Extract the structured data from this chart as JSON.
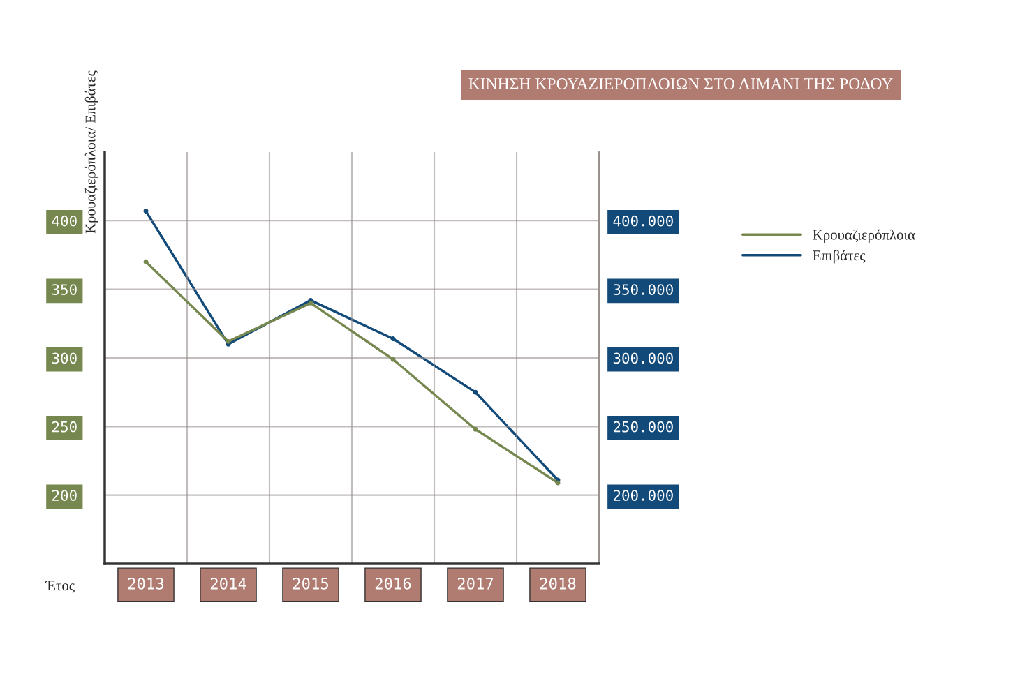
{
  "chart_data": {
    "type": "line",
    "title": "ΚΙΝΗΣΗ ΚΡΟΥΑΖΙΕΡΟΠΛΟΙΩΝ ΣΤΟ ΛΙΜΑΝΙ ΤΗΣ ΡΟΔΟΥ",
    "xlabel": "Έτος",
    "ylabel": "Κρουαζιερόπλοια/ Επιβάτες",
    "categories": [
      "2013",
      "2014",
      "2015",
      "2016",
      "2017",
      "2018"
    ],
    "series": [
      {
        "name": "Κρουαζιερόπλοια",
        "color": "#76874f",
        "values": [
          370,
          312,
          340,
          299,
          248,
          209
        ]
      },
      {
        "name": "Επιβάτες",
        "color": "#124a7a",
        "axis": "y2",
        "values": [
          407000,
          310000,
          342000,
          314000,
          275000,
          211000
        ]
      }
    ],
    "ylim": [
      150,
      450
    ],
    "yticks": [
      200,
      250,
      300,
      350,
      400
    ],
    "y2lim": [
      150000,
      450000
    ],
    "y2ticks": [
      {
        "value": 200000,
        "label": "200.000"
      },
      {
        "value": 250000,
        "label": "250.000"
      },
      {
        "value": 300000,
        "label": "300.000"
      },
      {
        "value": 350000,
        "label": "350.000"
      },
      {
        "value": 400000,
        "label": "400.000"
      }
    ],
    "grid": true,
    "legend": "right",
    "marker": "circle",
    "line_style": "solid"
  }
}
